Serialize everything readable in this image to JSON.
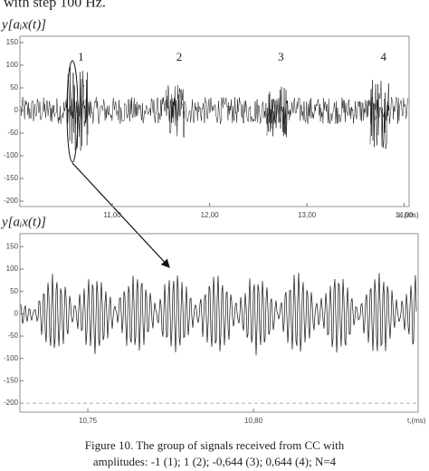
{
  "header_text": "with step 100 Hz.",
  "caption": [
    "Figure 10.     The group of signals received from CC with",
    "amplitudes: -1 (1); 1 (2); -0,644 (3); 0,644 (4); N=4"
  ],
  "chart_data": [
    {
      "type": "line",
      "y_label": "y[aᵢx(t)]",
      "x_label": "t, (ms)",
      "xlim": [
        10.05,
        14.05
      ],
      "ylim": [
        -212,
        164
      ],
      "xticks": [
        {
          "value": 11,
          "label": "11,00"
        },
        {
          "value": 12,
          "label": "12,00"
        },
        {
          "value": 13,
          "label": "13,00"
        },
        {
          "value": 14,
          "label": "14,00"
        }
      ],
      "yticks": [
        -200,
        -150,
        -100,
        -50,
        0,
        50,
        100,
        150
      ],
      "color": "#111111",
      "noise_amplitude": 30,
      "bursts": {
        "labels": [
          "1",
          "2",
          "3",
          "4"
        ],
        "start": [
          10.53,
          11.55,
          12.59,
          13.65
        ],
        "end": [
          10.75,
          11.75,
          12.8,
          13.85
        ],
        "amplitude": [
          100,
          60,
          60,
          85
        ]
      }
    },
    {
      "type": "line",
      "y_label": "y[aᵢx(t)]",
      "x_label": "t,(ms)",
      "xlim": [
        10.7295,
        10.8497
      ],
      "ylim": [
        -220,
        179
      ],
      "xticks": [
        {
          "value": 10.75,
          "label": "10,75"
        },
        {
          "value": 10.8,
          "label": "10,80"
        }
      ],
      "yticks": [
        -200,
        -150,
        -100,
        -50,
        0,
        50,
        100,
        150
      ],
      "color": "#111111",
      "amplitude": 95
    }
  ]
}
